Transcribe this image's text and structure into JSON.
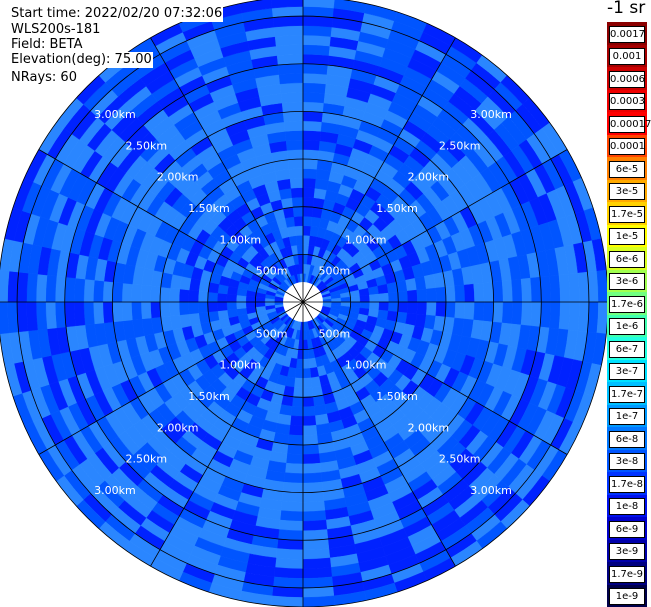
{
  "info": {
    "start_time": "Start time: 2022/02/20 07:32:06",
    "instrument": "WLS200s-181",
    "field": "Field: BETA",
    "elevation": "Elevation(deg): 75.00",
    "nrays": "NRays: 60"
  },
  "colorbar": {
    "title": "-1 sr",
    "ticks": [
      "0.0017",
      "0.001",
      "0.0006",
      "0.0003",
      "0.00017",
      "0.0001",
      "6e-5",
      "3e-5",
      "1.7e-5",
      "1e-5",
      "6e-6",
      "3e-6",
      "1.7e-6",
      "1e-6",
      "6e-7",
      "3e-7",
      "1.7e-7",
      "1e-7",
      "6e-8",
      "3e-8",
      "1.7e-8",
      "1e-8",
      "6e-9",
      "3e-9",
      "1.7e-9",
      "1e-9"
    ],
    "colors": [
      "#8b0000",
      "#a50000",
      "#cc0000",
      "#ee0000",
      "#ff0000",
      "#ff4500",
      "#ff7f00",
      "#ffaa00",
      "#ffd000",
      "#ffff00",
      "#d8ff20",
      "#a0ff50",
      "#70ff80",
      "#40ffb0",
      "#20ffe0",
      "#00e0ff",
      "#00bfff",
      "#0099ff",
      "#0077ff",
      "#0055ff",
      "#0033ff",
      "#0011ee",
      "#0000cc",
      "#0000aa",
      "#000080",
      "#00004a"
    ]
  },
  "chart_data": {
    "type": "heatmap",
    "projection": "polar (PPI scan)",
    "field": "BETA",
    "elevation_deg": 75.0,
    "nrays": 60,
    "range_rings_labels": [
      "500m",
      "1.00km",
      "1.50km",
      "2.00km",
      "2.50km",
      "3.00km"
    ],
    "range_rings_m": [
      500,
      1000,
      1500,
      2000,
      2500,
      3000
    ],
    "max_range_m": 3200,
    "spokes_deg": [
      0,
      30,
      60,
      90,
      120,
      150,
      180,
      210,
      240,
      270,
      300,
      330
    ],
    "dominant_values": "mostly 1e-8 to 1.7e-8 sr-1 (blue), some 6e-8 near 1.50km",
    "colors": {
      "dark": "#0022ff",
      "medium": "#0055ff",
      "light": "#2a86ff"
    }
  }
}
